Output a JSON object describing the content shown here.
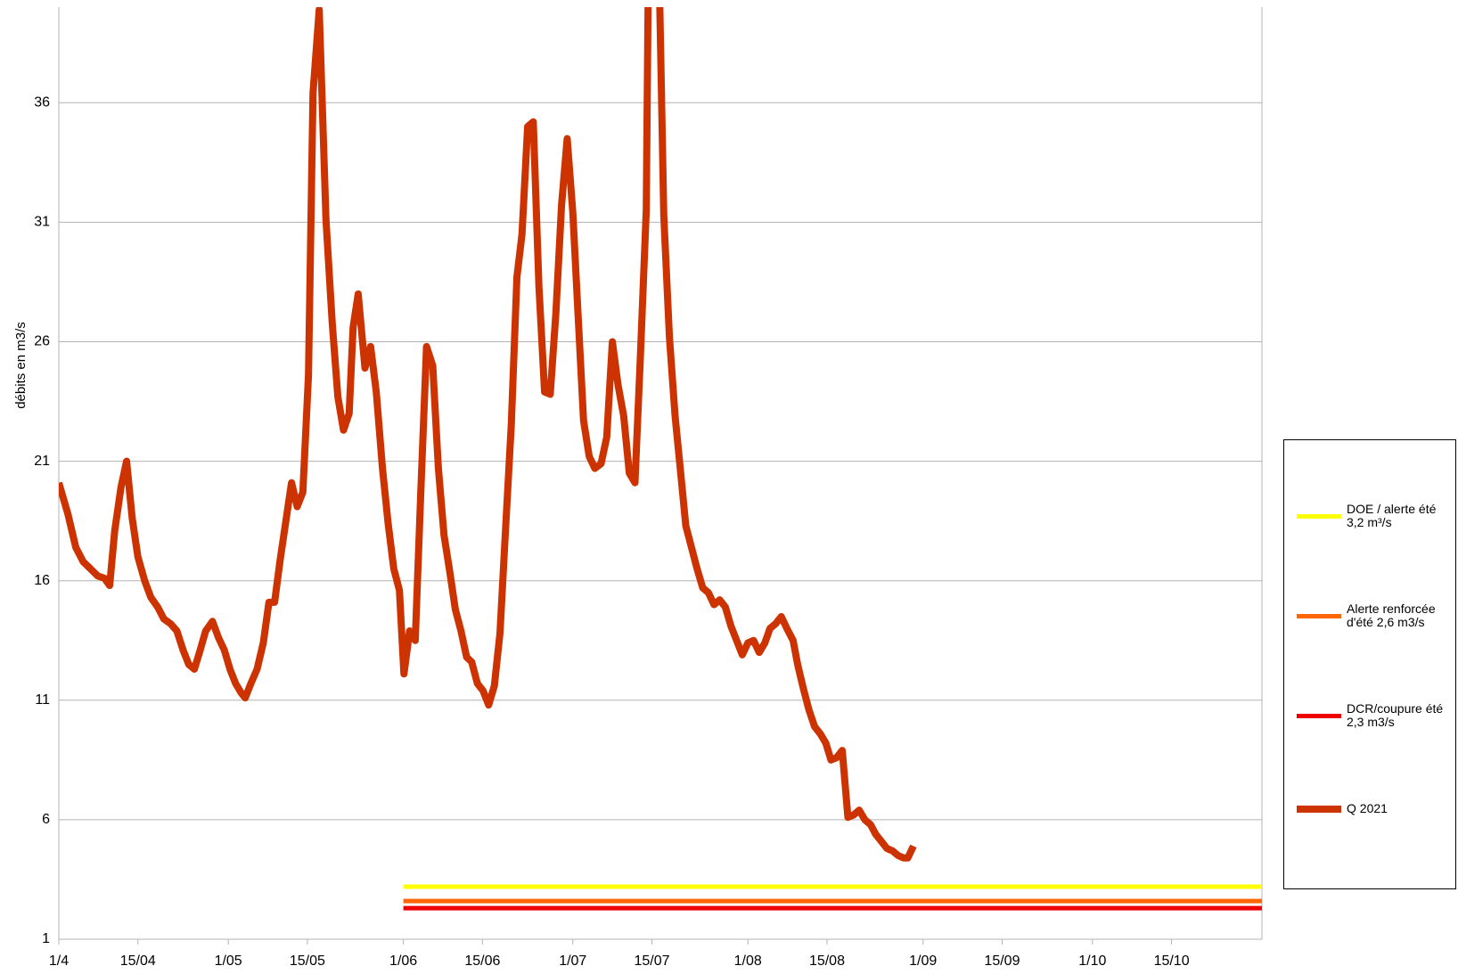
{
  "chart_data": {
    "type": "line",
    "y_label": "débits en m3/s",
    "xlim": [
      0,
      213
    ],
    "xticks": [
      {
        "value": 0,
        "label": "1/4"
      },
      {
        "value": 14,
        "label": "15/04"
      },
      {
        "value": 30,
        "label": "1/05"
      },
      {
        "value": 44,
        "label": "15/05"
      },
      {
        "value": 61,
        "label": "1/06"
      },
      {
        "value": 75,
        "label": "15/06"
      },
      {
        "value": 91,
        "label": "1/07"
      },
      {
        "value": 105,
        "label": "15/07"
      },
      {
        "value": 122,
        "label": "1/08"
      },
      {
        "value": 136,
        "label": "15/08"
      },
      {
        "value": 153,
        "label": "1/09"
      },
      {
        "value": 167,
        "label": "15/09"
      },
      {
        "value": 183,
        "label": "1/10"
      },
      {
        "value": 197,
        "label": "15/10"
      }
    ],
    "ylim": [
      1,
      40
    ],
    "yticks": [
      1,
      6,
      11,
      16,
      21,
      26,
      31,
      36
    ],
    "grid": true,
    "series": [
      {
        "name": "DOE / alerte été 3,2 m³/s",
        "color": "#ffff00",
        "width": 5,
        "x": [
          61,
          213
        ],
        "values": [
          3.2,
          3.2
        ]
      },
      {
        "name": "Alerte renforcée d'été 2,6 m3/s",
        "color": "#ff6600",
        "width": 5,
        "x": [
          61,
          213
        ],
        "values": [
          2.6,
          2.6
        ]
      },
      {
        "name": "DCR/coupure été 2,3 m3/s",
        "color": "#ee0000",
        "width": 5,
        "x": [
          61,
          213
        ],
        "values": [
          2.3,
          2.3
        ]
      },
      {
        "name": "Q 2021",
        "color": "#cc3300",
        "width": 8,
        "x": [
          0,
          1.6,
          3,
          4.3,
          5.6,
          6.9,
          8.1,
          9,
          9.9,
          11,
          12,
          13,
          14,
          15.2,
          16.3,
          17.5,
          18.6,
          19.8,
          20.9,
          22,
          23,
          24,
          24.9,
          26,
          27.2,
          28.3,
          29.3,
          30.3,
          31.3,
          32.3,
          33,
          34,
          35.1,
          36.2,
          37.2,
          38.2,
          39.2,
          40.2,
          41.2,
          42.2,
          43.2,
          44.2,
          45,
          46.1,
          47.3,
          48.4,
          49.4,
          50.4,
          51.4,
          52.1,
          53,
          54.2,
          55.2,
          56.2,
          57.3,
          58.3,
          59.3,
          60.3,
          61.1,
          62.1,
          63.1,
          64.1,
          65.1,
          66.2,
          67.2,
          68.2,
          69.2,
          70.2,
          71.2,
          72.2,
          73.1,
          74.1,
          75.1,
          76.1,
          77.1,
          78.1,
          79.1,
          80.1,
          81.1,
          82,
          83,
          84,
          85,
          86,
          87,
          88,
          89,
          90,
          91,
          92,
          92.9,
          93.9,
          94.9,
          96,
          97,
          98,
          99,
          100,
          101,
          102,
          103,
          104,
          104.5,
          106,
          107.1,
          108.1,
          109.1,
          110.1,
          111,
          112,
          113,
          114,
          115,
          116,
          117,
          118,
          119,
          120,
          121,
          122,
          123,
          124,
          125,
          125.9,
          126.9,
          127.9,
          128.9,
          130,
          130.8,
          131.8,
          132.8,
          133.8,
          134.8,
          135.8,
          136.7,
          137.7,
          138.7,
          139.7,
          140.7,
          141.7,
          142.7,
          143.7,
          144.6,
          145.6,
          146.6,
          147.6,
          148.6,
          149.6,
          150.3,
          151.3
        ],
        "values": [
          20.1,
          18.8,
          17.4,
          16.8,
          16.5,
          16.2,
          16.1,
          15.8,
          18.1,
          19.9,
          21,
          18.6,
          17,
          16,
          15.3,
          14.9,
          14.4,
          14.2,
          13.9,
          13.1,
          12.5,
          12.3,
          13,
          13.9,
          14.3,
          13.6,
          13.1,
          12.3,
          11.7,
          11.3,
          11.1,
          11.7,
          12.3,
          13.4,
          15.1,
          15.1,
          16.9,
          18.5,
          20.1,
          19.1,
          19.7,
          24.6,
          36.4,
          39.9,
          31.1,
          26.8,
          23.7,
          22.3,
          23,
          26.6,
          28,
          24.9,
          25.8,
          23.9,
          20.7,
          18.4,
          16.5,
          15.6,
          12.1,
          13.9,
          13.5,
          19.8,
          25.8,
          25,
          20.7,
          17.9,
          16.4,
          14.8,
          13.9,
          12.8,
          12.6,
          11.7,
          11.4,
          10.8,
          11.6,
          13.8,
          18.2,
          22.5,
          28.7,
          30.5,
          35,
          35.2,
          28.3,
          23.9,
          23.8,
          27.2,
          31.7,
          34.5,
          31.4,
          26.8,
          22.7,
          21.2,
          20.7,
          20.9,
          22,
          26,
          24.2,
          22.9,
          20.5,
          20.1,
          25.6,
          31.5,
          45,
          45,
          31.3,
          26.2,
          22.9,
          20.5,
          18.3,
          17.4,
          16.5,
          15.7,
          15.5,
          15,
          15.2,
          14.9,
          14.1,
          13.5,
          12.9,
          13.4,
          13.5,
          13,
          13.4,
          14,
          14.2,
          14.5,
          14,
          13.5,
          12.5,
          11.5,
          10.6,
          9.9,
          9.6,
          9.2,
          8.5,
          8.6,
          8.9,
          6.1,
          6.2,
          6.4,
          6,
          5.8,
          5.4,
          5.1,
          4.8,
          4.7,
          4.5,
          4.4,
          4.4,
          4.9
        ]
      }
    ]
  }
}
